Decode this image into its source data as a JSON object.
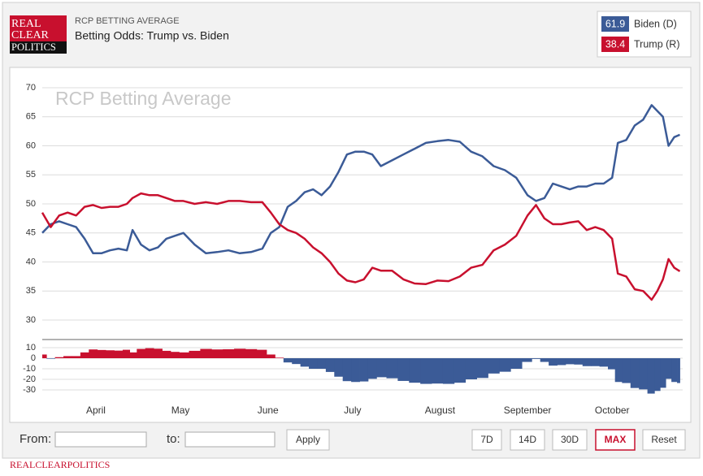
{
  "header": {
    "logo": [
      "REAL",
      "CLEAR",
      "POLITICS"
    ],
    "kicker": "RCP BETTING AVERAGE",
    "title": "Betting Odds: Trump vs. Biden"
  },
  "chart_data": [
    {
      "type": "line",
      "title": "RCP Betting Average",
      "x": [
        0,
        3,
        6,
        9,
        12,
        15,
        18,
        21,
        24,
        27,
        30,
        32,
        35,
        38,
        41,
        44,
        47,
        50,
        54,
        58,
        62,
        66,
        70,
        74,
        78,
        81,
        84,
        87,
        90,
        93,
        96,
        99,
        102,
        105,
        108,
        111,
        114,
        117,
        120,
        124,
        128,
        132,
        136,
        140,
        144,
        148,
        152,
        156,
        160,
        164,
        168,
        172,
        175,
        178,
        181,
        184,
        187,
        190,
        193,
        196,
        199,
        202,
        204,
        207,
        210,
        213,
        216,
        218,
        220,
        222,
        224,
        226
      ],
      "xlim": [
        0,
        227
      ],
      "ylim": [
        30,
        70
      ],
      "yticks": [
        30,
        35,
        40,
        45,
        50,
        55,
        60,
        65,
        70
      ],
      "grid": true,
      "series": [
        {
          "name": "Biden (D)",
          "color": "#3b5b97",
          "values": [
            45,
            46.5,
            47,
            46.5,
            46,
            44,
            41.5,
            41.5,
            42,
            42.3,
            42,
            45.5,
            43,
            42,
            42.5,
            44,
            44.5,
            45,
            43,
            41.5,
            41.7,
            42,
            41.5,
            41.7,
            42.3,
            45,
            46,
            49.5,
            50.5,
            52,
            52.5,
            51.5,
            53,
            55.5,
            58.5,
            59,
            59,
            58.5,
            56.5,
            57.5,
            58.5,
            59.5,
            60.5,
            60.8,
            61,
            60.7,
            59,
            58.2,
            56.5,
            55.8,
            54.5,
            51.5,
            50.5,
            51,
            53.5,
            53,
            52.5,
            53,
            53,
            53.5,
            53.5,
            54.5,
            60.5,
            61,
            63.5,
            64.5,
            67,
            66,
            65,
            60,
            61.5,
            61.9
          ]
        },
        {
          "name": "Trump (R)",
          "color": "#c8102e",
          "values": [
            48.5,
            46,
            48,
            48.5,
            48,
            49.5,
            49.8,
            49.3,
            49.5,
            49.5,
            50,
            51,
            51.8,
            51.5,
            51.5,
            51,
            50.5,
            50.5,
            50,
            50.3,
            50,
            50.5,
            50.5,
            50.3,
            50.3,
            48.5,
            46.5,
            45.5,
            45,
            44,
            42.5,
            41.5,
            40,
            38,
            36.8,
            36.5,
            37,
            39,
            38.5,
            38.5,
            37,
            36.3,
            36.2,
            36.8,
            36.7,
            37.5,
            39,
            39.5,
            42,
            43,
            44.5,
            48,
            49.8,
            47.5,
            46.5,
            46.5,
            46.8,
            47,
            45.5,
            46,
            45.5,
            44,
            38,
            37.5,
            35.3,
            35,
            33.5,
            35,
            37,
            40.5,
            39,
            38.4
          ]
        }
      ]
    },
    {
      "type": "area",
      "x": [
        0,
        3,
        6,
        9,
        12,
        15,
        18,
        21,
        24,
        27,
        30,
        32,
        35,
        38,
        41,
        44,
        47,
        50,
        54,
        58,
        62,
        66,
        70,
        74,
        78,
        81,
        84,
        87,
        90,
        93,
        96,
        99,
        102,
        105,
        108,
        111,
        114,
        117,
        120,
        124,
        128,
        132,
        136,
        140,
        144,
        148,
        152,
        156,
        160,
        164,
        168,
        172,
        175,
        178,
        181,
        184,
        187,
        190,
        193,
        196,
        199,
        202,
        204,
        207,
        210,
        213,
        216,
        218,
        220,
        222,
        224,
        226
      ],
      "xlim": [
        0,
        227
      ],
      "ylim": [
        -35,
        15
      ],
      "yticks": [
        -30,
        -20,
        -10,
        0,
        10
      ],
      "grid": true,
      "xticks": [
        {
          "value": 19,
          "label": "April"
        },
        {
          "value": 49,
          "label": "May"
        },
        {
          "value": 80,
          "label": "June"
        },
        {
          "value": 110,
          "label": "July"
        },
        {
          "value": 141,
          "label": "August"
        },
        {
          "value": 172,
          "label": "September"
        },
        {
          "value": 202,
          "label": "October"
        }
      ],
      "positive_color": "#c8102e",
      "negative_color": "#3b5b97",
      "values": [
        3.5,
        -0.5,
        1,
        2,
        2,
        5.5,
        8.3,
        7.8,
        7.5,
        7.2,
        8,
        5.5,
        8.8,
        9.5,
        9,
        7,
        6,
        5.5,
        7,
        8.8,
        8.3,
        8.5,
        9,
        8.6,
        8,
        3.5,
        0.5,
        -4,
        -5.5,
        -8,
        -10,
        -10,
        -13,
        -17.5,
        -21.7,
        -22.5,
        -22,
        -19.5,
        -18,
        -19,
        -21.5,
        -23.2,
        -24.3,
        -24,
        -24.3,
        -23.2,
        -20,
        -18.7,
        -14.5,
        -12.8,
        -10,
        -3.5,
        -0.7,
        -3.5,
        -7,
        -6.5,
        -5.7,
        -6,
        -7.5,
        -7.5,
        -8,
        -10.5,
        -22.5,
        -23.5,
        -28.2,
        -29.5,
        -33.5,
        -31,
        -28,
        -19.5,
        -22.5,
        -23.5
      ]
    }
  ],
  "controls": {
    "from": "From:",
    "to": "to:",
    "apply": "Apply",
    "ranges": [
      "7D",
      "14D",
      "30D",
      "MAX",
      "Reset"
    ]
  },
  "footer": "REALCLEARPOLITICS"
}
